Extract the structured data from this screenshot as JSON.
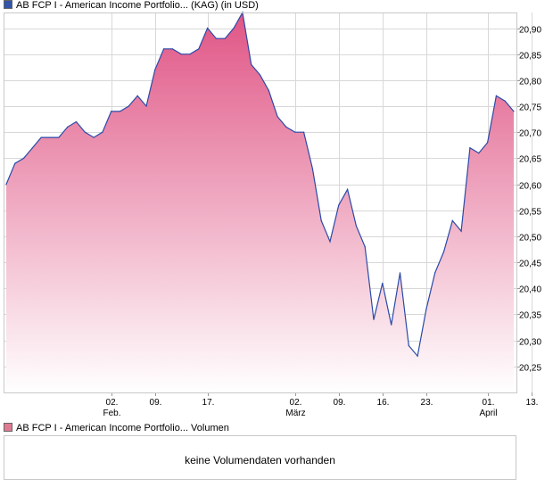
{
  "legend": {
    "price_label": "AB FCP I - American Income Portfolio... (KAG) (in USD)",
    "volume_label": "AB FCP I - American Income Portfolio... Volumen"
  },
  "volume_panel": {
    "message": "keine Volumendaten vorhanden"
  },
  "colors": {
    "line": "#2a4aa8",
    "fill_top": "#e05585",
    "fill_bottom": "#ffffff",
    "grid": "#d8d8d8"
  },
  "chart_data": {
    "type": "area",
    "title": "AB FCP I - American Income Portfolio... (KAG) (in USD)",
    "xlabel": "",
    "ylabel": "",
    "y_axis_side": "right",
    "ylim": [
      20.2,
      20.93
    ],
    "y_ticks": [
      "20,25",
      "20,30",
      "20,35",
      "20,40",
      "20,45",
      "20,50",
      "20,55",
      "20,60",
      "20,65",
      "20,70",
      "20,75",
      "20,80",
      "20,85",
      "20,90"
    ],
    "x_ticks": [
      {
        "label": "02.",
        "sublabel": "Feb.",
        "index": 12
      },
      {
        "label": "09.",
        "sublabel": "",
        "index": 17
      },
      {
        "label": "17.",
        "sublabel": "",
        "index": 23
      },
      {
        "label": "02.",
        "sublabel": "März",
        "index": 33
      },
      {
        "label": "09.",
        "sublabel": "",
        "index": 38
      },
      {
        "label": "16.",
        "sublabel": "",
        "index": 43
      },
      {
        "label": "23.",
        "sublabel": "",
        "index": 48
      },
      {
        "label": "01.",
        "sublabel": "April",
        "index": 55
      },
      {
        "label": "13.",
        "sublabel": "",
        "index": 60
      }
    ],
    "grid": true,
    "series": [
      {
        "values": [
          20.6,
          20.64,
          20.65,
          20.67,
          20.69,
          20.69,
          20.69,
          20.71,
          20.72,
          20.7,
          20.69,
          20.7,
          20.74,
          20.74,
          20.75,
          20.77,
          20.75,
          20.82,
          20.86,
          20.86,
          20.85,
          20.85,
          20.86,
          20.9,
          20.88,
          20.88,
          20.9,
          20.93,
          20.83,
          20.81,
          20.78,
          20.73,
          20.71,
          20.7,
          20.7,
          20.63,
          20.53,
          20.49,
          20.56,
          20.59,
          20.52,
          20.48,
          20.34,
          20.41,
          20.33,
          20.43,
          20.29,
          20.27,
          20.36,
          20.43,
          20.47,
          20.53,
          20.51,
          20.67,
          20.66,
          20.68,
          20.77,
          20.76,
          20.74
        ]
      }
    ]
  }
}
